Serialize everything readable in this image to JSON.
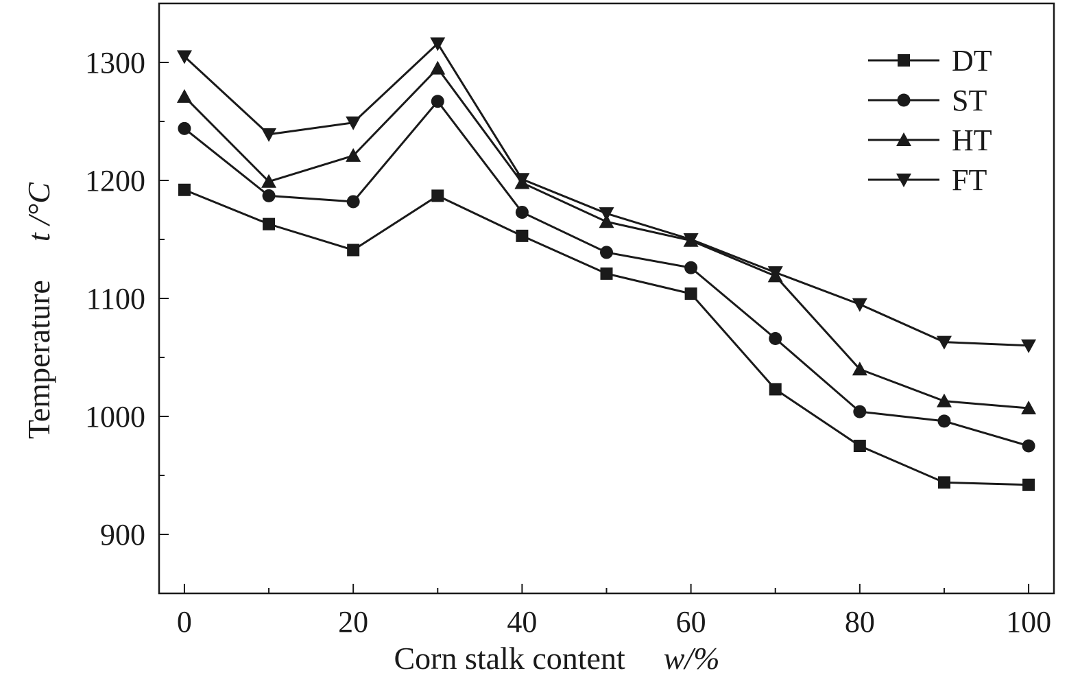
{
  "chart_data": {
    "type": "line",
    "xlabel": "Corn stalk content",
    "xlabel_unit": "w/%",
    "ylabel": "Temperature",
    "ylabel_unit": "t /°C",
    "xlim": [
      -3,
      103
    ],
    "ylim": [
      850,
      1350
    ],
    "x_ticks": [
      0,
      20,
      40,
      60,
      80,
      100
    ],
    "y_ticks": [
      900,
      1000,
      1100,
      1200,
      1300
    ],
    "legend_position": "top-right",
    "grid": false,
    "x": [
      0,
      10,
      20,
      30,
      40,
      50,
      60,
      70,
      80,
      90,
      100
    ],
    "series": [
      {
        "name": "DT",
        "marker": "square",
        "values": [
          1192,
          1163,
          1141,
          1187,
          1153,
          1121,
          1104,
          1023,
          975,
          944,
          942
        ]
      },
      {
        "name": "ST",
        "marker": "circle",
        "values": [
          1244,
          1187,
          1182,
          1267,
          1173,
          1139,
          1126,
          1066,
          1004,
          996,
          975
        ]
      },
      {
        "name": "HT",
        "marker": "triangle-up",
        "values": [
          1271,
          1199,
          1221,
          1295,
          1198,
          1165,
          1149,
          1119,
          1040,
          1013,
          1007
        ]
      },
      {
        "name": "FT",
        "marker": "triangle-down",
        "values": [
          1305,
          1239,
          1249,
          1316,
          1201,
          1172,
          1150,
          1122,
          1095,
          1063,
          1060
        ]
      }
    ],
    "colors": {
      "line": "#1a1a1a",
      "background": "#ffffff"
    }
  }
}
